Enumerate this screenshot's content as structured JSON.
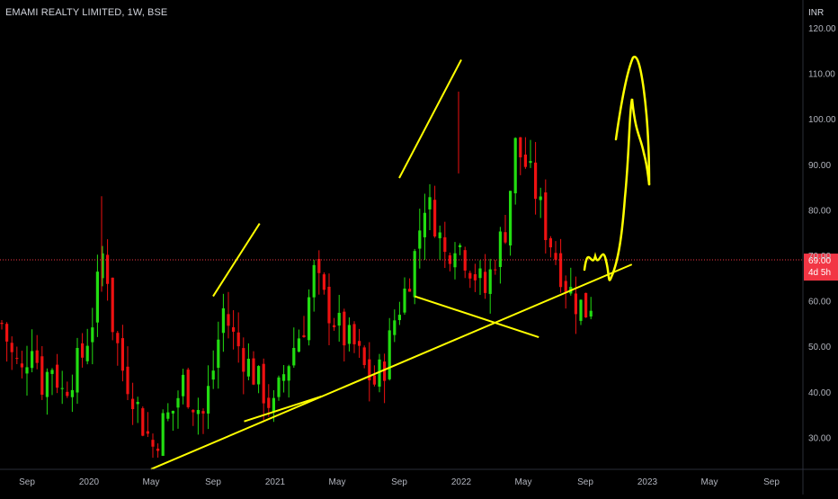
{
  "header": {
    "title": "EMAMI REALTY LIMITED, 1W, BSE"
  },
  "chart_data": {
    "type": "candlestick",
    "currency": "INR",
    "ylim": [
      22,
      123
    ],
    "y_ticks": [
      "120.00",
      "110.00",
      "100.00",
      "90.00",
      "80.00",
      "70.00",
      "60.00",
      "50.00",
      "40.00",
      "30.00"
    ],
    "x_ticks": [
      "Sep",
      "2020",
      "May",
      "Sep",
      "2021",
      "May",
      "Sep",
      "2022",
      "May",
      "Sep",
      "2023",
      "May",
      "Sep"
    ],
    "last_price": {
      "value": 69.0,
      "label": "69.00",
      "countdown": "4d 5h",
      "color": "#f23645"
    },
    "colors": {
      "up": "#22dd11",
      "down": "#ee1111",
      "annotation": "#ffff00",
      "background": "#000000"
    },
    "trendlines": [
      {
        "from": [
          "2020-05",
          23
        ],
        "to": [
          "2022-12",
          68
        ]
      },
      {
        "from": [
          "2020-09",
          61
        ],
        "to": [
          "2020-12",
          77
        ]
      },
      {
        "from": [
          "2020-11",
          33.5
        ],
        "to": [
          "2021-04",
          39
        ]
      },
      {
        "from": [
          "2021-09",
          87
        ],
        "to": [
          "2022-01",
          113
        ]
      },
      {
        "from": [
          "2021-10",
          61
        ],
        "to": [
          "2022-06",
          52
        ]
      }
    ],
    "candles_segments": [
      {
        "period": "2019-08..2019-12",
        "range": [
          38,
          63
        ]
      },
      {
        "period": "2020-01..2020-03",
        "range": [
          44,
          83
        ]
      },
      {
        "period": "2020-04..2020-05",
        "range": [
          23,
          40
        ]
      },
      {
        "period": "2020-06..2020-09",
        "range": [
          28,
          62
        ]
      },
      {
        "period": "2020-10..2020-11",
        "range": [
          34,
          50
        ]
      },
      {
        "period": "2020-12..2021-03",
        "range": [
          38,
          73
        ]
      },
      {
        "period": "2021-04..2021-06",
        "range": [
          40,
          68
        ]
      },
      {
        "period": "2021-07..2021-09",
        "range": [
          55,
          87
        ]
      },
      {
        "period": "2021-10..2021-12",
        "range": [
          60,
          85
        ]
      },
      {
        "period": "2022-01..2022-03",
        "range": [
          62,
          106
        ]
      },
      {
        "period": "2022-04..2022-06",
        "range": [
          53,
          78
        ]
      },
      {
        "period": "2022-07..2022-09",
        "range": [
          58,
          78
        ]
      }
    ]
  }
}
